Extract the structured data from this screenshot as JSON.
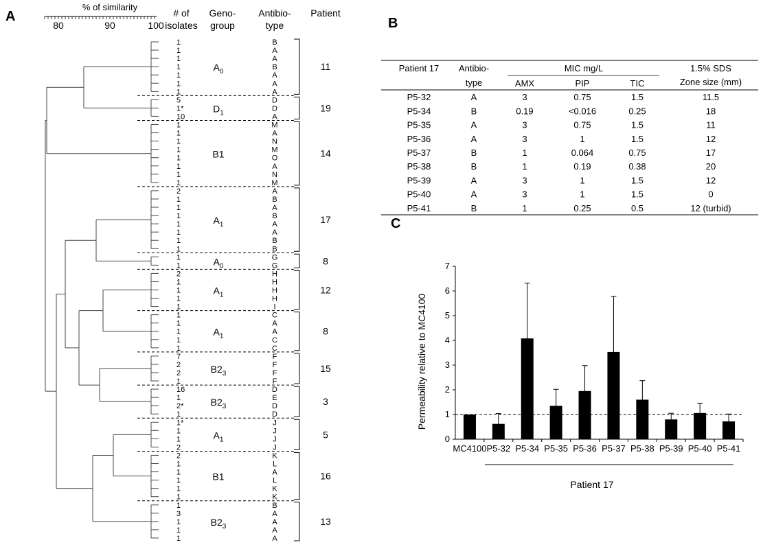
{
  "panels": {
    "a": "A",
    "b": "B",
    "c": "C"
  },
  "dendrogram": {
    "scale_title": "% of similarity",
    "scale_ticks": [
      "80",
      "90",
      "100"
    ],
    "headers": {
      "isolates": [
        "# of",
        "isolates"
      ],
      "genogroup": [
        "Geno-",
        "group"
      ],
      "antibiotype": [
        "Antibio-",
        "type"
      ],
      "patient": "Patient"
    },
    "clusters": [
      {
        "genogroup": "A",
        "genogroup_sub": "0",
        "patient": "11",
        "isolates": [
          "1",
          "1",
          "1",
          "1",
          "1",
          "1",
          "1"
        ],
        "antibiotypes": [
          "B",
          "A",
          "A",
          "B",
          "A",
          "A",
          "A"
        ]
      },
      {
        "genogroup": "D",
        "genogroup_sub": "1",
        "patient": "19",
        "isolates": [
          "5",
          "1*",
          "10"
        ],
        "antibiotypes": [
          "D",
          "D",
          "A"
        ]
      },
      {
        "genogroup": "B1",
        "genogroup_sub": "",
        "patient": "14",
        "isolates": [
          "1",
          "1",
          "1",
          "1",
          "1",
          "1",
          "1",
          "1"
        ],
        "antibiotypes": [
          "M",
          "A",
          "N",
          "M",
          "O",
          "A",
          "N",
          "M"
        ]
      },
      {
        "genogroup": "A",
        "genogroup_sub": "1",
        "patient": "17",
        "isolates": [
          "2",
          "1",
          "1",
          "1",
          "1",
          "1",
          "1",
          "1"
        ],
        "antibiotypes": [
          "A",
          "B",
          "A",
          "B",
          "A",
          "A",
          "B",
          "B"
        ]
      },
      {
        "genogroup": "A",
        "genogroup_sub": "0",
        "patient": "8",
        "isolates": [
          "1",
          "1"
        ],
        "antibiotypes": [
          "G",
          "G"
        ]
      },
      {
        "genogroup": "A",
        "genogroup_sub": "1",
        "patient": "12",
        "isolates": [
          "2",
          "1",
          "1",
          "1",
          "1"
        ],
        "antibiotypes": [
          "H",
          "H",
          "H",
          "H",
          "I"
        ]
      },
      {
        "genogroup": "A",
        "genogroup_sub": "1",
        "patient": "8",
        "isolates": [
          "1",
          "1",
          "1",
          "1",
          "1"
        ],
        "antibiotypes": [
          "C",
          "A",
          "A",
          "C",
          "C"
        ]
      },
      {
        "genogroup": "B2",
        "genogroup_sub": "3",
        "patient": "15",
        "isolates": [
          "7",
          "2",
          "2",
          "1"
        ],
        "antibiotypes": [
          "F",
          "F",
          "F",
          "F"
        ]
      },
      {
        "genogroup": "B2",
        "genogroup_sub": "3",
        "patient": "3",
        "isolates": [
          "16",
          "1",
          "2*",
          "1"
        ],
        "antibiotypes": [
          "D",
          "E",
          "D",
          "D"
        ]
      },
      {
        "genogroup": "A",
        "genogroup_sub": "1",
        "patient": "5",
        "isolates": [
          "1*",
          "1",
          "1",
          "2"
        ],
        "antibiotypes": [
          "J",
          "J",
          "J",
          "J"
        ]
      },
      {
        "genogroup": "B1",
        "genogroup_sub": "",
        "patient": "16",
        "isolates": [
          "2",
          "1",
          "1",
          "1",
          "1",
          "1"
        ],
        "antibiotypes": [
          "K",
          "L",
          "A",
          "L",
          "K",
          "K"
        ]
      },
      {
        "genogroup": "B2",
        "genogroup_sub": "3",
        "patient": "13",
        "isolates": [
          "1",
          "3",
          "1",
          "1",
          "1"
        ],
        "antibiotypes": [
          "B",
          "A",
          "A",
          "A",
          "A"
        ]
      }
    ]
  },
  "mic_table": {
    "header": {
      "patient": "Patient 17",
      "antibiotype": [
        "Antibio-",
        "type"
      ],
      "mic": "MIC mg/L",
      "mic_cols": [
        "AMX",
        "PIP",
        "TIC"
      ],
      "sds": [
        "1.5% SDS",
        "Zone size (mm)"
      ]
    },
    "rows": [
      [
        "P5-32",
        "A",
        "3",
        "0.75",
        "1.5",
        "11.5"
      ],
      [
        "P5-34",
        "B",
        "0.19",
        "<0.016",
        "0.25",
        "18"
      ],
      [
        "P5-35",
        "A",
        "3",
        "0.75",
        "1.5",
        "11"
      ],
      [
        "P5-36",
        "A",
        "3",
        "1",
        "1.5",
        "12"
      ],
      [
        "P5-37",
        "B",
        "1",
        "0.064",
        "0.75",
        "17"
      ],
      [
        "P5-38",
        "B",
        "1",
        "0.19",
        "0.38",
        "20"
      ],
      [
        "P5-39",
        "A",
        "3",
        "1",
        "1.5",
        "12"
      ],
      [
        "P5-40",
        "A",
        "3",
        "1",
        "1.5",
        "0"
      ],
      [
        "P5-41",
        "B",
        "1",
        "0.25",
        "0.5",
        "12 (turbid)"
      ]
    ]
  },
  "chart_data": {
    "type": "bar",
    "ylabel": "Permeability relative to MC4100",
    "xlabel": "",
    "group_label": "Patient 17",
    "ylim": [
      0,
      7
    ],
    "yticks": [
      "0",
      "1",
      "2",
      "3",
      "4",
      "5",
      "6",
      "7"
    ],
    "reference_line": 1,
    "categories": [
      "MC4100",
      "P5-32",
      "P5-34",
      "P5-35",
      "P5-36",
      "P5-37",
      "P5-38",
      "P5-39",
      "P5-40",
      "P5-41"
    ],
    "values": [
      1.0,
      0.62,
      4.08,
      1.35,
      1.95,
      3.53,
      1.6,
      0.8,
      1.06,
      0.72
    ],
    "error_upper": [
      0,
      0.42,
      2.24,
      0.67,
      1.03,
      2.25,
      0.77,
      0.25,
      0.4,
      0.3
    ],
    "bar_color": "#000000"
  }
}
